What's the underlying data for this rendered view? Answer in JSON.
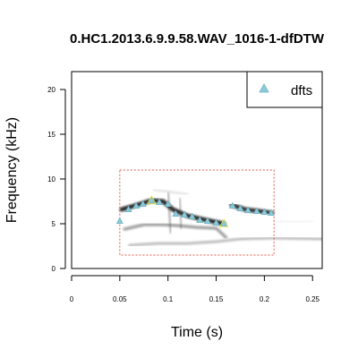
{
  "chart_data": {
    "type": "scatter",
    "title": "0.HC1.2013.6.9.9.58.WAV_1016-1-dfDTW",
    "xlabel": "Time (s)",
    "ylabel": "Frequency (kHz)",
    "xlim": [
      0,
      0.26
    ],
    "ylim": [
      0,
      22
    ],
    "xticks": [
      0,
      0.05,
      0.1,
      0.15,
      0.2,
      0.25
    ],
    "xtick_labels": [
      "0",
      "0.05",
      "0.1",
      "0.15",
      "0.2",
      "0.25"
    ],
    "yticks": [
      0,
      5,
      10,
      15,
      20
    ],
    "ytick_labels": [
      "0",
      "5",
      "10",
      "15",
      "20"
    ],
    "legend": {
      "position": "top-right",
      "entries": [
        "dfts"
      ]
    },
    "series": [
      {
        "name": "dfts",
        "color": "#6cb4c8",
        "marker": "triangle",
        "points": [
          [
            0.05,
            5.3
          ],
          [
            0.059,
            6.6
          ],
          [
            0.067,
            7.0
          ],
          [
            0.074,
            7.2
          ],
          [
            0.083,
            7.6
          ],
          [
            0.091,
            7.4
          ],
          [
            0.1,
            7.2
          ],
          [
            0.108,
            6.1
          ],
          [
            0.117,
            6.0
          ],
          [
            0.125,
            5.8
          ],
          [
            0.133,
            5.4
          ],
          [
            0.141,
            5.3
          ],
          [
            0.15,
            5.1
          ],
          [
            0.158,
            5.0
          ],
          [
            0.167,
            7.0
          ],
          [
            0.175,
            6.7
          ],
          [
            0.183,
            6.5
          ],
          [
            0.192,
            6.4
          ],
          [
            0.2,
            6.3
          ],
          [
            0.207,
            6.2
          ]
        ]
      }
    ],
    "highlighted_points": {
      "color": "#e8e64a",
      "points": [
        [
          0.083,
          7.6
        ],
        [
          0.158,
          5.0
        ]
      ]
    },
    "selection_box": {
      "color": "#e05a4a",
      "style": "dotted",
      "x": [
        0.05,
        0.21
      ],
      "y": [
        1.5,
        11.0
      ]
    },
    "background": "grayscale spectrogram"
  }
}
